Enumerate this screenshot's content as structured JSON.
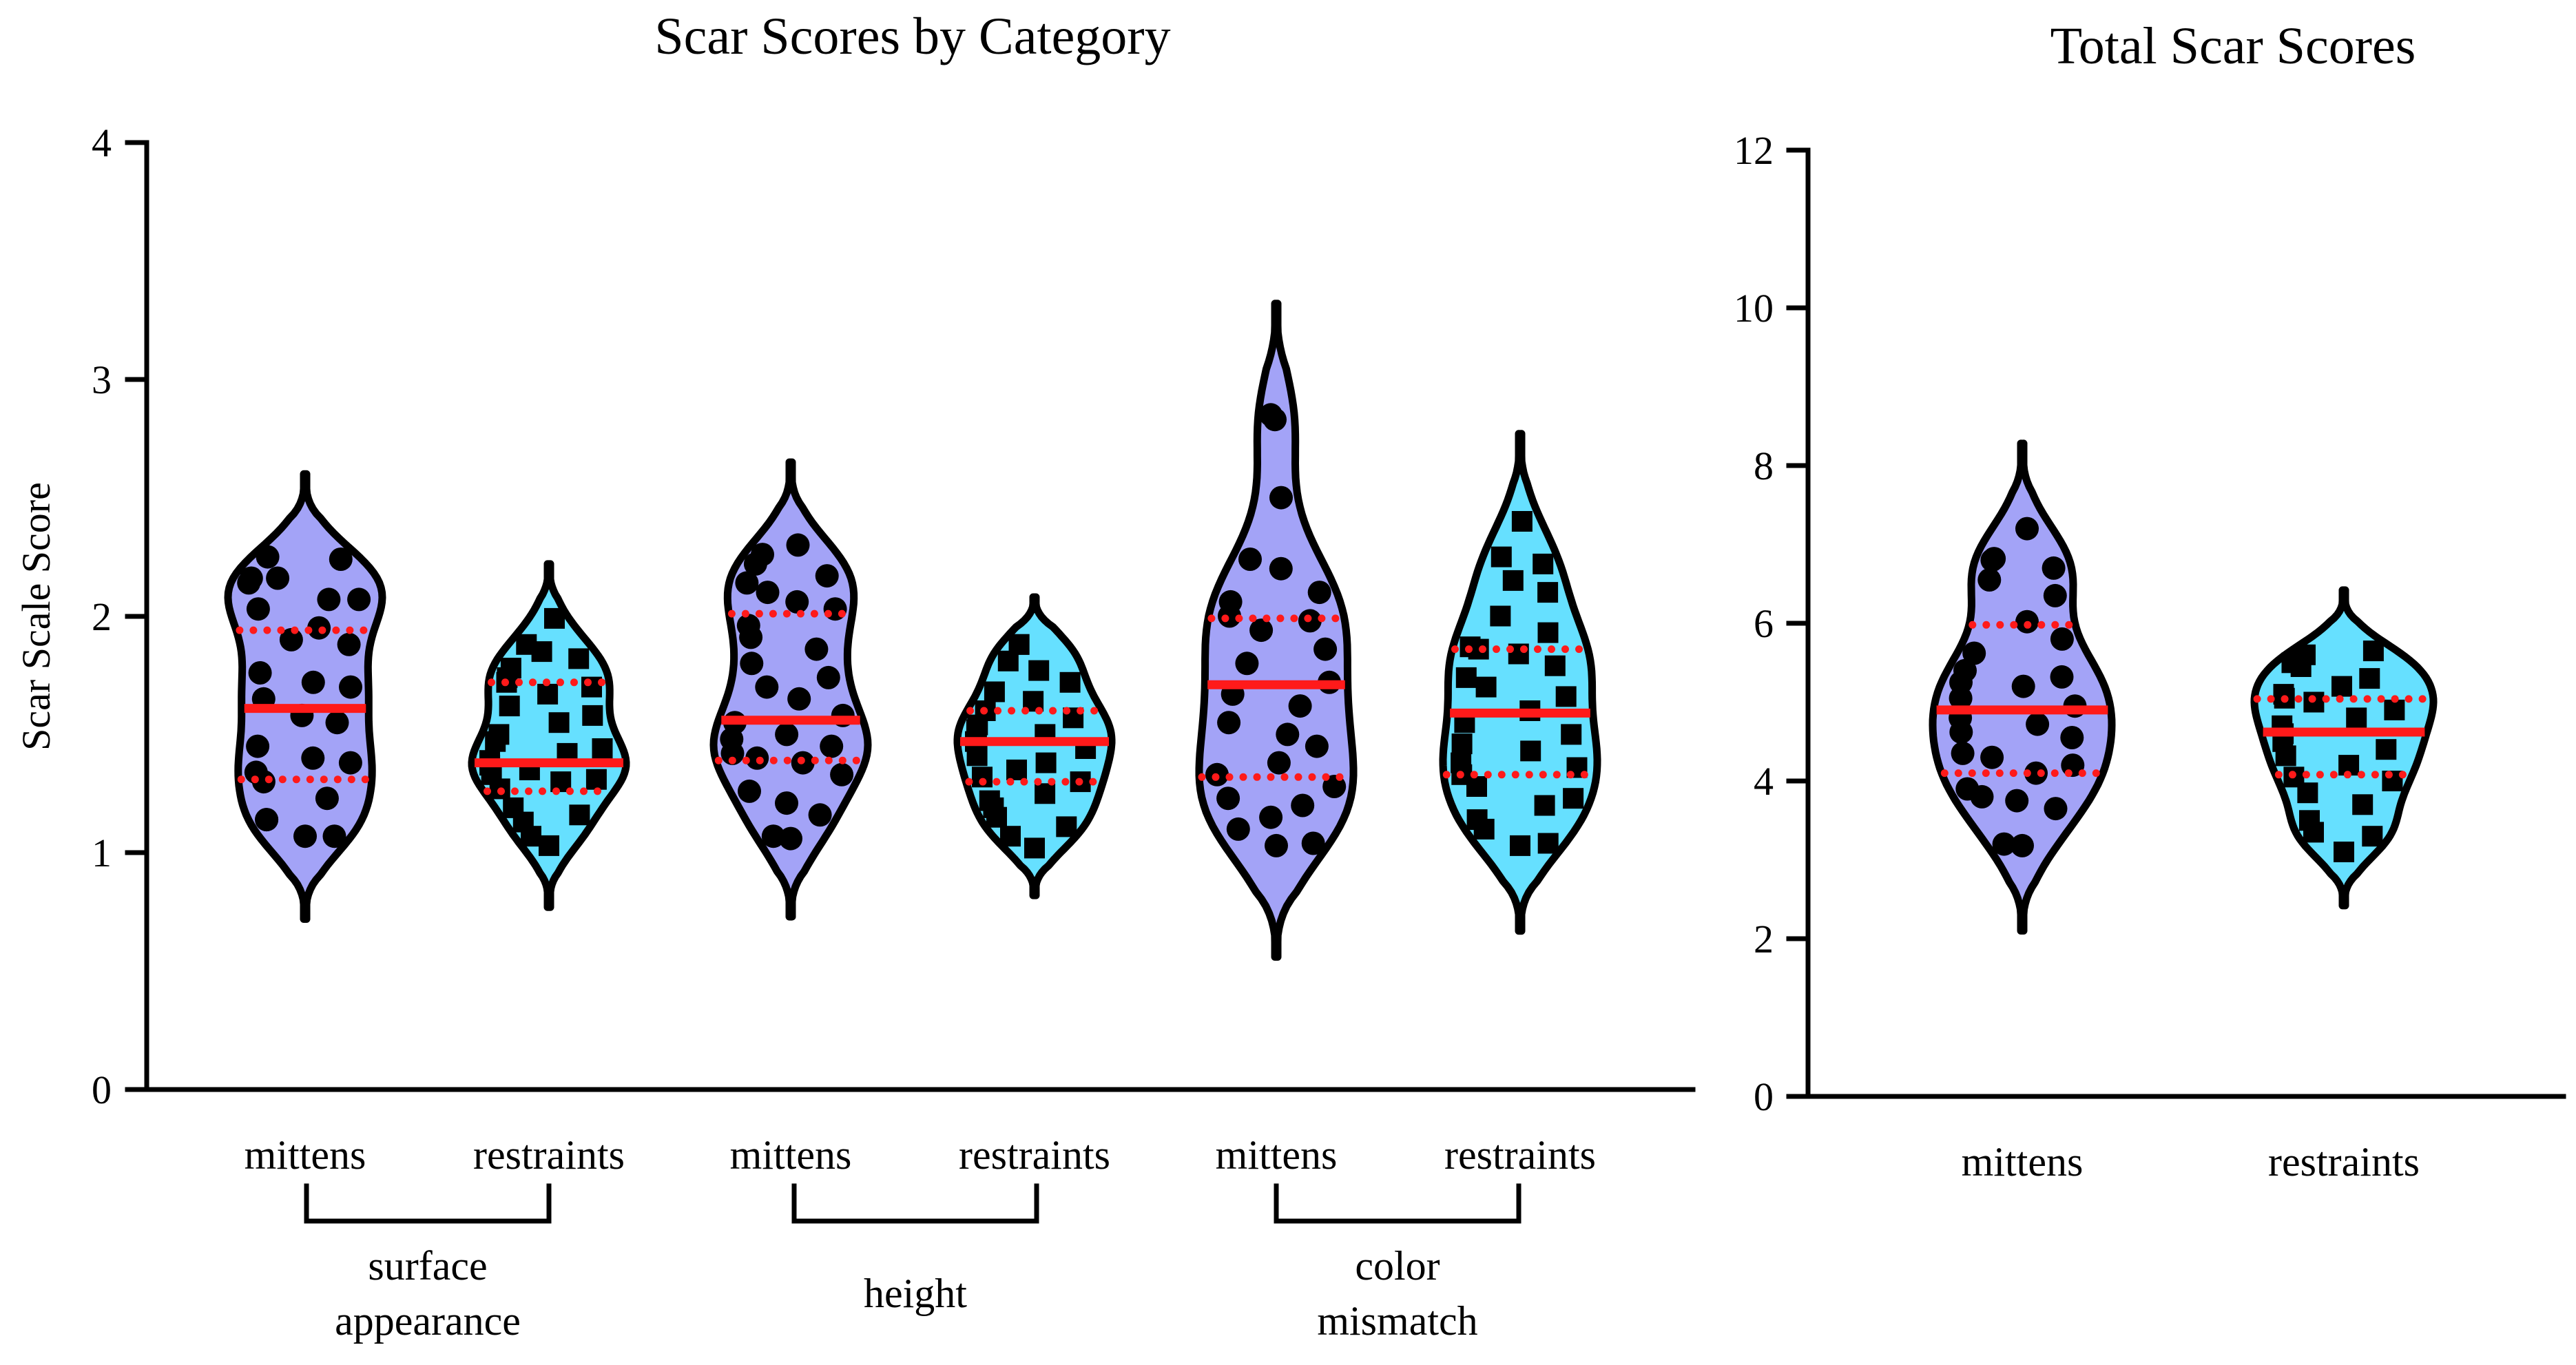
{
  "chart_data": [
    {
      "type": "violin",
      "title": "Scar Scores by Category",
      "ylabel": "Scar Scale Score",
      "ylim": [
        0,
        4
      ],
      "yticks": [
        "0",
        "1",
        "2",
        "3",
        "4"
      ],
      "categories": [
        "mittens",
        "restraints",
        "mittens",
        "restraints",
        "mittens",
        "restraints"
      ],
      "groups": [
        "surface appearance",
        "height",
        "color mismatch"
      ],
      "series": [
        {
          "group": "surface appearance",
          "category": "mittens",
          "marker": "circle",
          "fill": "#a3a3f7",
          "median": 1.61,
          "q1": 1.31,
          "q3": 1.94,
          "min": 0.72,
          "max": 2.6,
          "points": [
            1.07,
            1.07,
            1.14,
            1.14,
            1.23,
            1.3,
            1.34,
            1.38,
            1.4,
            1.45,
            1.55,
            1.58,
            1.65,
            1.7,
            1.72,
            1.76,
            1.88,
            1.9,
            1.95,
            2.03,
            2.07,
            2.07,
            2.14,
            2.16,
            2.16,
            2.24,
            2.25
          ]
        },
        {
          "group": "surface appearance",
          "category": "restraints",
          "marker": "square",
          "fill": "#66e0ff",
          "median": 1.38,
          "q1": 1.26,
          "q3": 1.72,
          "min": 0.77,
          "max": 2.22,
          "points": [
            1.03,
            1.07,
            1.13,
            1.16,
            1.19,
            1.27,
            1.3,
            1.31,
            1.33,
            1.35,
            1.37,
            1.39,
            1.42,
            1.44,
            1.47,
            1.5,
            1.55,
            1.58,
            1.62,
            1.67,
            1.7,
            1.72,
            1.74,
            1.78,
            1.82,
            1.85,
            1.88,
            1.99
          ]
        },
        {
          "group": "height",
          "category": "mittens",
          "marker": "circle",
          "fill": "#a3a3f7",
          "median": 1.56,
          "q1": 1.39,
          "q3": 2.01,
          "min": 0.73,
          "max": 2.65,
          "points": [
            1.06,
            1.07,
            1.16,
            1.21,
            1.26,
            1.33,
            1.38,
            1.4,
            1.42,
            1.45,
            1.48,
            1.5,
            1.55,
            1.58,
            1.65,
            1.7,
            1.74,
            1.8,
            1.86,
            1.91,
            1.96,
            2.03,
            2.06,
            2.1,
            2.14,
            2.17,
            2.22,
            2.26,
            2.3
          ]
        },
        {
          "group": "height",
          "category": "restraints",
          "marker": "square",
          "fill": "#66e0ff",
          "median": 1.47,
          "q1": 1.3,
          "q3": 1.6,
          "min": 0.82,
          "max": 2.08,
          "points": [
            1.02,
            1.07,
            1.11,
            1.15,
            1.19,
            1.22,
            1.25,
            1.3,
            1.32,
            1.35,
            1.38,
            1.41,
            1.44,
            1.47,
            1.5,
            1.52,
            1.54,
            1.57,
            1.6,
            1.64,
            1.68,
            1.72,
            1.77,
            1.81,
            1.88,
            1.88
          ]
        },
        {
          "group": "color mismatch",
          "category": "mittens",
          "marker": "circle",
          "fill": "#a3a3f7",
          "median": 1.71,
          "q1": 1.32,
          "q3": 1.99,
          "min": 0.56,
          "max": 3.32,
          "points": [
            1.03,
            1.04,
            1.1,
            1.15,
            1.2,
            1.23,
            1.28,
            1.33,
            1.38,
            1.45,
            1.5,
            1.55,
            1.62,
            1.67,
            1.72,
            1.8,
            1.86,
            1.94,
            1.98,
            2.0,
            2.06,
            2.1,
            2.2,
            2.24,
            2.5,
            2.83,
            2.85
          ]
        },
        {
          "group": "color mismatch",
          "category": "restraints",
          "marker": "square",
          "fill": "#66e0ff",
          "median": 1.59,
          "q1": 1.33,
          "q3": 1.86,
          "min": 0.67,
          "max": 2.77,
          "points": [
            1.03,
            1.04,
            1.1,
            1.14,
            1.2,
            1.23,
            1.28,
            1.33,
            1.36,
            1.38,
            1.43,
            1.46,
            1.5,
            1.55,
            1.6,
            1.66,
            1.7,
            1.74,
            1.79,
            1.84,
            1.86,
            1.87,
            1.93,
            2.0,
            2.1,
            2.15,
            2.22,
            2.25,
            2.4
          ]
        }
      ]
    },
    {
      "type": "violin",
      "title": "Total Scar Scores",
      "ylabel": "",
      "ylim": [
        0,
        12
      ],
      "yticks": [
        "0",
        "2",
        "4",
        "6",
        "8",
        "10",
        "12"
      ],
      "categories": [
        "mittens",
        "restraints"
      ],
      "series": [
        {
          "category": "mittens",
          "marker": "circle",
          "fill": "#a3a3f7",
          "median": 4.9,
          "q1": 4.1,
          "q3": 5.98,
          "min": 2.1,
          "max": 8.28,
          "points": [
            3.18,
            3.2,
            3.65,
            3.75,
            3.8,
            3.9,
            4.1,
            4.2,
            4.3,
            4.35,
            4.55,
            4.62,
            4.72,
            4.8,
            4.95,
            5.05,
            5.2,
            5.25,
            5.32,
            5.4,
            5.62,
            5.8,
            6.02,
            6.35,
            6.55,
            6.7,
            6.8,
            6.82,
            7.2
          ]
        },
        {
          "category": "restraints",
          "marker": "square",
          "fill": "#66e0ff",
          "median": 4.62,
          "q1": 4.08,
          "q3": 5.04,
          "min": 2.42,
          "max": 6.42,
          "points": [
            3.1,
            3.3,
            3.35,
            3.5,
            3.7,
            3.85,
            4.0,
            4.05,
            4.2,
            4.32,
            4.4,
            4.5,
            4.6,
            4.7,
            4.8,
            4.9,
            5.0,
            5.05,
            5.1,
            5.2,
            5.3,
            5.45,
            5.5,
            5.6,
            5.65
          ]
        }
      ]
    }
  ],
  "left_panel": {
    "title": "Scar Scores by Category",
    "ylabel": "Scar Scale Score",
    "yticks": [
      "0",
      "1",
      "2",
      "3",
      "4"
    ],
    "categories": [
      "mittens",
      "restraints",
      "mittens",
      "restraints",
      "mittens",
      "restraints"
    ],
    "groups": [
      {
        "line1": "surface",
        "line2": "appearance"
      },
      {
        "line1": "height",
        "line2": ""
      },
      {
        "line1": "color",
        "line2": "mismatch"
      }
    ]
  },
  "right_panel": {
    "title": "Total Scar Scores",
    "yticks": [
      "0",
      "2",
      "4",
      "6",
      "8",
      "10",
      "12"
    ],
    "categories": [
      "mittens",
      "restraints"
    ]
  },
  "colors": {
    "mittens": "#a3a3f7",
    "restraints": "#66e0ff",
    "median": "#ff1a1a",
    "outline": "#000000"
  }
}
